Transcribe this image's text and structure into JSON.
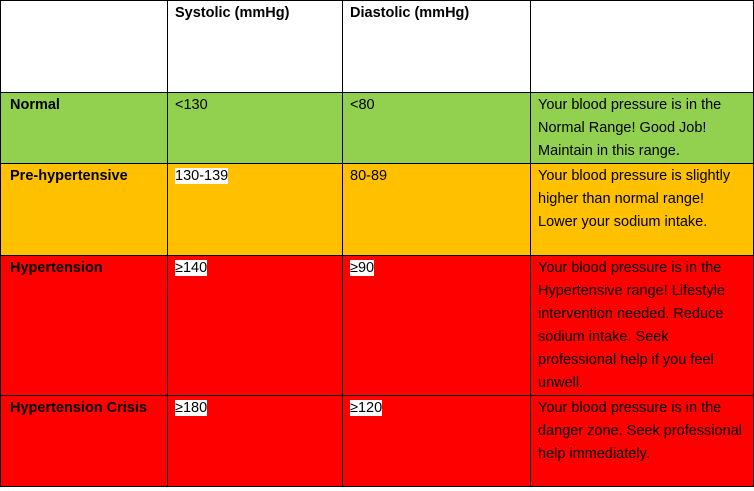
{
  "colors": {
    "normal": "#92d050",
    "pre_hypertensive": "#ffc000",
    "hypertension": "#ff0000",
    "crisis": "#ff0000"
  },
  "headers": {
    "category": "",
    "systolic": "Systolic (mmHg)",
    "diastolic": "Diastolic (mmHg)",
    "message": ""
  },
  "rows": [
    {
      "category": "Normal",
      "systolic": "<130",
      "diastolic": "<80",
      "message": "Your blood pressure is in the Normal Range! Good Job! Maintain in this range."
    },
    {
      "category": "Pre-hypertensive",
      "systolic": "130-139",
      "diastolic": "80-89",
      "message": "Your blood pressure is slightly higher than normal range! Lower your sodium intake."
    },
    {
      "category": "Hypertension",
      "systolic": "≥140",
      "diastolic": "≥90",
      "message": "Your blood pressure is in the Hypertensive range! Lifestyle intervention needed. Reduce sodium intake. Seek professional help if you feel unwell."
    },
    {
      "category": "Hypertension Crisis",
      "systolic": "≥180",
      "diastolic": "≥120",
      "message": "Your blood pressure is in the danger zone. Seek professional help immediately."
    }
  ]
}
